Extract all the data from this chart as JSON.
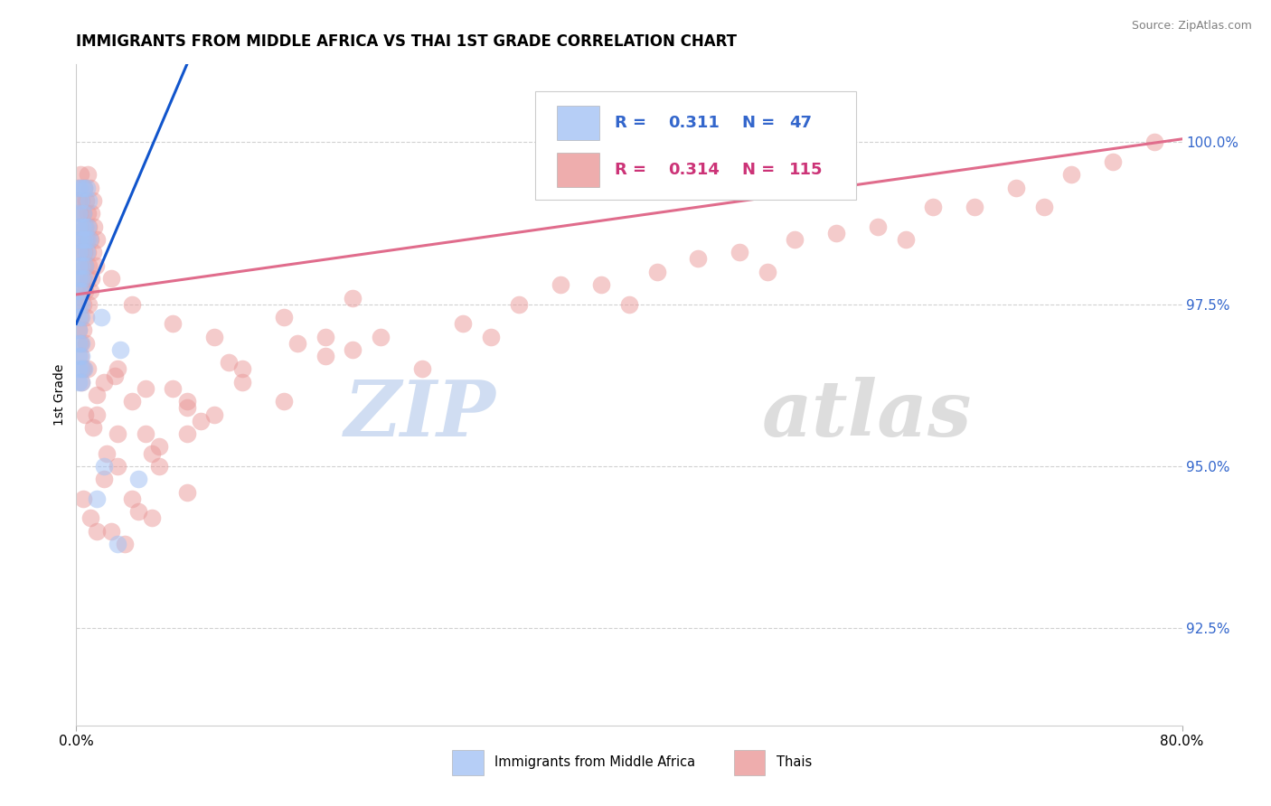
{
  "title": "IMMIGRANTS FROM MIDDLE AFRICA VS THAI 1ST GRADE CORRELATION CHART",
  "source": "Source: ZipAtlas.com",
  "ylabel": "1st Grade",
  "yticks": [
    92.5,
    95.0,
    97.5,
    100.0
  ],
  "ytick_labels": [
    "92.5%",
    "95.0%",
    "97.5%",
    "100.0%"
  ],
  "xlim": [
    0.0,
    80.0
  ],
  "ylim": [
    91.0,
    101.2
  ],
  "legend_blue_label": "Immigrants from Middle Africa",
  "legend_pink_label": "Thais",
  "blue_color": "#a4c2f4",
  "pink_color": "#ea9999",
  "blue_line_color": "#1155cc",
  "pink_line_color": "#e06c8c",
  "watermark_zip": "ZIP",
  "watermark_atlas": "atlas",
  "blue_points": [
    [
      0.15,
      99.3
    ],
    [
      0.35,
      99.3
    ],
    [
      0.55,
      99.3
    ],
    [
      0.75,
      99.3
    ],
    [
      0.3,
      99.1
    ],
    [
      0.9,
      99.1
    ],
    [
      0.2,
      98.9
    ],
    [
      0.5,
      98.9
    ],
    [
      0.2,
      98.7
    ],
    [
      0.45,
      98.7
    ],
    [
      0.65,
      98.7
    ],
    [
      0.85,
      98.7
    ],
    [
      0.15,
      98.5
    ],
    [
      0.35,
      98.5
    ],
    [
      0.55,
      98.5
    ],
    [
      0.75,
      98.5
    ],
    [
      0.95,
      98.5
    ],
    [
      0.2,
      98.3
    ],
    [
      0.5,
      98.3
    ],
    [
      0.75,
      98.3
    ],
    [
      0.15,
      98.1
    ],
    [
      0.4,
      98.1
    ],
    [
      0.6,
      98.1
    ],
    [
      0.15,
      97.9
    ],
    [
      0.35,
      97.9
    ],
    [
      0.55,
      97.9
    ],
    [
      0.15,
      97.7
    ],
    [
      0.35,
      97.7
    ],
    [
      0.2,
      97.5
    ],
    [
      0.4,
      97.5
    ],
    [
      0.15,
      97.3
    ],
    [
      0.35,
      97.3
    ],
    [
      0.15,
      97.1
    ],
    [
      0.2,
      96.9
    ],
    [
      0.4,
      96.9
    ],
    [
      0.15,
      96.7
    ],
    [
      0.35,
      96.7
    ],
    [
      0.15,
      96.5
    ],
    [
      0.35,
      96.5
    ],
    [
      0.55,
      96.5
    ],
    [
      0.2,
      96.3
    ],
    [
      0.4,
      96.3
    ],
    [
      1.8,
      97.3
    ],
    [
      3.2,
      96.8
    ],
    [
      2.0,
      95.0
    ],
    [
      4.5,
      94.8
    ],
    [
      1.5,
      94.5
    ],
    [
      3.0,
      93.8
    ]
  ],
  "pink_points": [
    [
      0.3,
      99.5
    ],
    [
      0.8,
      99.5
    ],
    [
      0.2,
      99.3
    ],
    [
      0.55,
      99.3
    ],
    [
      1.0,
      99.3
    ],
    [
      0.15,
      99.1
    ],
    [
      0.4,
      99.1
    ],
    [
      0.7,
      99.1
    ],
    [
      1.2,
      99.1
    ],
    [
      0.25,
      98.9
    ],
    [
      0.5,
      98.9
    ],
    [
      0.8,
      98.9
    ],
    [
      1.1,
      98.9
    ],
    [
      0.3,
      98.7
    ],
    [
      0.6,
      98.7
    ],
    [
      0.9,
      98.7
    ],
    [
      1.3,
      98.7
    ],
    [
      0.2,
      98.5
    ],
    [
      0.5,
      98.5
    ],
    [
      0.75,
      98.5
    ],
    [
      1.0,
      98.5
    ],
    [
      1.5,
      98.5
    ],
    [
      0.25,
      98.3
    ],
    [
      0.55,
      98.3
    ],
    [
      0.85,
      98.3
    ],
    [
      1.2,
      98.3
    ],
    [
      0.3,
      98.1
    ],
    [
      0.6,
      98.1
    ],
    [
      0.9,
      98.1
    ],
    [
      1.4,
      98.1
    ],
    [
      0.2,
      97.9
    ],
    [
      0.5,
      97.9
    ],
    [
      0.8,
      97.9
    ],
    [
      1.1,
      97.9
    ],
    [
      0.3,
      97.7
    ],
    [
      0.6,
      97.7
    ],
    [
      1.0,
      97.7
    ],
    [
      0.2,
      97.5
    ],
    [
      0.5,
      97.5
    ],
    [
      0.9,
      97.5
    ],
    [
      0.3,
      97.3
    ],
    [
      0.7,
      97.3
    ],
    [
      0.2,
      97.1
    ],
    [
      0.5,
      97.1
    ],
    [
      0.3,
      96.9
    ],
    [
      0.7,
      96.9
    ],
    [
      0.3,
      96.7
    ],
    [
      0.5,
      96.5
    ],
    [
      0.4,
      96.3
    ],
    [
      2.5,
      97.9
    ],
    [
      4.0,
      97.5
    ],
    [
      7.0,
      97.2
    ],
    [
      10.0,
      97.0
    ],
    [
      15.0,
      97.3
    ],
    [
      20.0,
      97.6
    ],
    [
      3.0,
      96.5
    ],
    [
      5.0,
      96.2
    ],
    [
      8.0,
      96.0
    ],
    [
      12.0,
      96.5
    ],
    [
      18.0,
      97.0
    ],
    [
      1.5,
      95.8
    ],
    [
      3.0,
      95.5
    ],
    [
      5.5,
      95.2
    ],
    [
      8.0,
      95.5
    ],
    [
      2.0,
      94.8
    ],
    [
      4.0,
      94.5
    ],
    [
      6.0,
      95.0
    ],
    [
      1.0,
      94.2
    ],
    [
      2.5,
      94.0
    ],
    [
      4.5,
      94.3
    ],
    [
      10.0,
      95.8
    ],
    [
      15.0,
      96.0
    ],
    [
      25.0,
      96.5
    ],
    [
      30.0,
      97.0
    ],
    [
      40.0,
      97.5
    ],
    [
      50.0,
      98.0
    ],
    [
      60.0,
      98.5
    ],
    [
      70.0,
      99.0
    ],
    [
      78.0,
      100.0
    ],
    [
      35.0,
      97.8
    ],
    [
      45.0,
      98.2
    ],
    [
      55.0,
      98.6
    ],
    [
      65.0,
      99.0
    ],
    [
      20.0,
      96.8
    ],
    [
      28.0,
      97.2
    ],
    [
      38.0,
      97.8
    ],
    [
      48.0,
      98.3
    ],
    [
      58.0,
      98.7
    ],
    [
      68.0,
      99.3
    ],
    [
      75.0,
      99.7
    ],
    [
      5.0,
      95.5
    ],
    [
      8.0,
      95.9
    ],
    [
      12.0,
      96.3
    ],
    [
      18.0,
      96.7
    ],
    [
      3.0,
      95.0
    ],
    [
      6.0,
      95.3
    ],
    [
      9.0,
      95.7
    ],
    [
      0.5,
      94.5
    ],
    [
      1.5,
      94.0
    ],
    [
      3.5,
      93.8
    ],
    [
      5.5,
      94.2
    ],
    [
      8.0,
      94.6
    ],
    [
      22.0,
      97.0
    ],
    [
      32.0,
      97.5
    ],
    [
      42.0,
      98.0
    ],
    [
      52.0,
      98.5
    ],
    [
      62.0,
      99.0
    ],
    [
      72.0,
      99.5
    ],
    [
      2.0,
      96.3
    ],
    [
      4.0,
      96.0
    ],
    [
      7.0,
      96.2
    ],
    [
      11.0,
      96.6
    ],
    [
      16.0,
      96.9
    ],
    [
      0.8,
      96.5
    ],
    [
      1.5,
      96.1
    ],
    [
      2.8,
      96.4
    ],
    [
      0.6,
      95.8
    ],
    [
      1.2,
      95.6
    ],
    [
      2.2,
      95.2
    ]
  ]
}
